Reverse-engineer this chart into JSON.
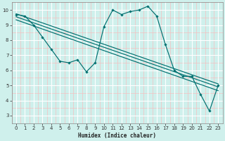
{
  "xlabel": "Humidex (Indice chaleur)",
  "bg_color": "#cff0ec",
  "line_color": "#007070",
  "grid_major_color": "#ffffff",
  "grid_minor_color": "#f5c0c0",
  "xlim": [
    -0.5,
    23.5
  ],
  "ylim": [
    2.75,
    10.25
  ],
  "yticks": [
    3,
    4,
    5,
    6,
    7,
    8,
    9,
    10
  ],
  "xticks": [
    0,
    1,
    2,
    3,
    4,
    5,
    6,
    7,
    8,
    9,
    10,
    11,
    12,
    13,
    14,
    15,
    16,
    17,
    18,
    19,
    20,
    21,
    22,
    23
  ],
  "main_line": {
    "x": [
      0,
      1,
      2,
      3,
      4,
      5,
      6,
      7,
      8,
      9,
      10,
      11,
      12,
      13,
      14,
      15,
      16,
      17,
      18,
      19,
      20,
      21,
      22,
      23
    ],
    "y": [
      9.7,
      9.6,
      9.0,
      8.2,
      7.4,
      6.6,
      6.5,
      6.7,
      5.9,
      6.5,
      8.9,
      10.0,
      9.7,
      9.9,
      10.0,
      10.25,
      9.6,
      7.7,
      6.0,
      5.6,
      5.6,
      4.4,
      3.3,
      5.0
    ]
  },
  "diag_lines": [
    {
      "x": [
        0,
        23
      ],
      "y": [
        9.75,
        5.1
      ]
    },
    {
      "x": [
        0,
        23
      ],
      "y": [
        9.55,
        4.9
      ]
    },
    {
      "x": [
        0,
        23
      ],
      "y": [
        9.35,
        4.65
      ]
    }
  ]
}
